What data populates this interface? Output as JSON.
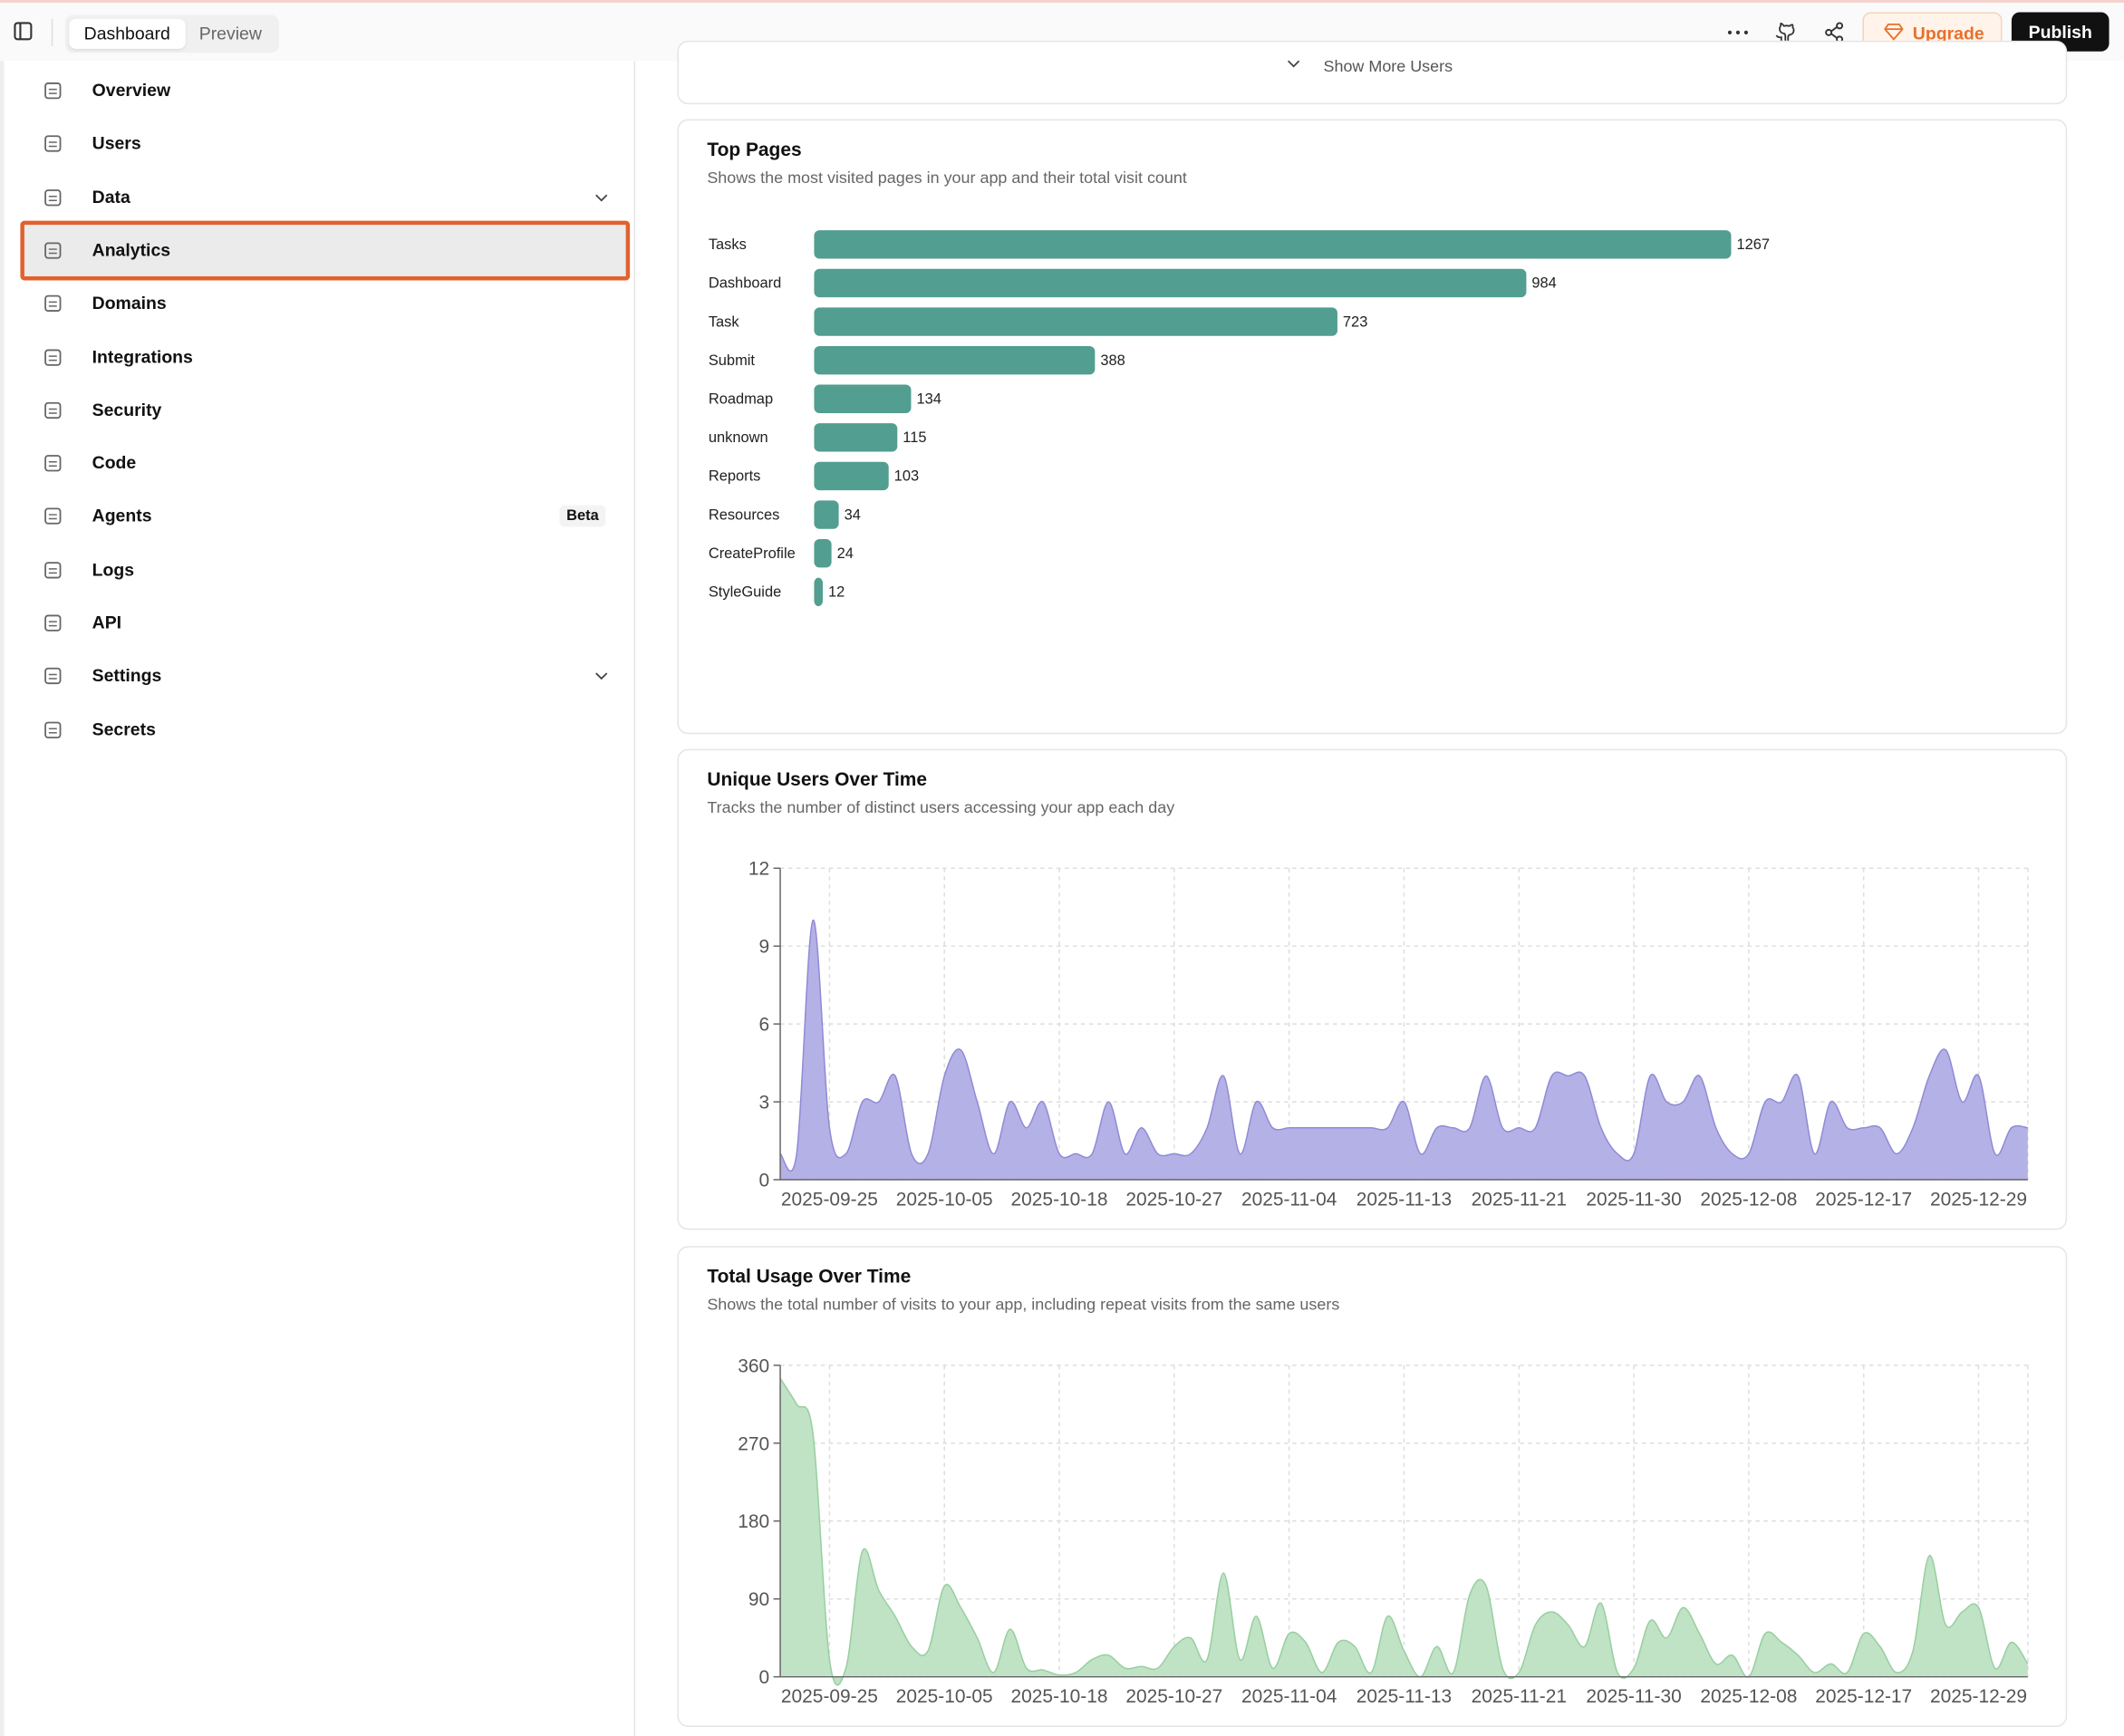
{
  "topbar": {
    "tabs": [
      "Dashboard",
      "Preview"
    ],
    "upgrade": "Upgrade",
    "publish": "Publish"
  },
  "sidebar": {
    "items": [
      {
        "label": "Overview"
      },
      {
        "label": "Users"
      },
      {
        "label": "Data",
        "expandable": true
      },
      {
        "label": "Analytics",
        "active": true
      },
      {
        "label": "Domains"
      },
      {
        "label": "Integrations"
      },
      {
        "label": "Security"
      },
      {
        "label": "Code"
      },
      {
        "label": "Agents",
        "badge": "Beta"
      },
      {
        "label": "Logs"
      },
      {
        "label": "API"
      },
      {
        "label": "Settings",
        "expandable": true
      },
      {
        "label": "Secrets"
      }
    ]
  },
  "show_more": "Show More Users",
  "charts": [
    {
      "type": "bar",
      "title": "Top Pages",
      "subtitle": "Shows the most visited pages in your app and their total visit count",
      "categories": [
        "Tasks",
        "Dashboard",
        "Task",
        "Submit",
        "Roadmap",
        "unknown",
        "Reports",
        "Resources",
        "CreateProfile",
        "StyleGuide"
      ],
      "values": [
        1267,
        984,
        723,
        388,
        134,
        115,
        103,
        34,
        24,
        12
      ],
      "color": "#529e90"
    },
    {
      "type": "area",
      "title": "Unique Users Over Time",
      "subtitle": "Tracks the number of distinct users accessing your app each day",
      "categories": [
        null,
        null,
        null,
        "2025-09-25",
        null,
        null,
        null,
        null,
        null,
        null,
        "2025-10-05",
        null,
        null,
        null,
        null,
        null,
        null,
        "2025-10-18",
        null,
        null,
        null,
        null,
        null,
        null,
        "2025-10-27",
        null,
        null,
        null,
        null,
        null,
        null,
        "2025-11-04",
        null,
        null,
        null,
        null,
        null,
        null,
        "2025-11-13",
        null,
        null,
        null,
        null,
        null,
        null,
        "2025-11-21",
        null,
        null,
        null,
        null,
        null,
        null,
        "2025-11-30",
        null,
        null,
        null,
        null,
        null,
        null,
        "2025-12-08",
        null,
        null,
        null,
        null,
        null,
        null,
        "2025-12-17",
        null,
        null,
        null,
        null,
        null,
        null,
        "2025-12-29",
        null,
        null,
        null
      ],
      "values": [
        1,
        1,
        10,
        2,
        1,
        3,
        3,
        4,
        1,
        1,
        4,
        5,
        3,
        1,
        3,
        2,
        3,
        1,
        1,
        1,
        3,
        1,
        2,
        1,
        1,
        1,
        2,
        4,
        1,
        3,
        2,
        2,
        2,
        2,
        2,
        2,
        2,
        2,
        3,
        1,
        2,
        2,
        2,
        4,
        2,
        2,
        2,
        4,
        4,
        4,
        2,
        1,
        1,
        4,
        3,
        3,
        4,
        2,
        1,
        1,
        3,
        3,
        4,
        1,
        3,
        2,
        2,
        2,
        1,
        2,
        4,
        5,
        3,
        4,
        1,
        2,
        2
      ],
      "color": "#8f8ad6",
      "fill": "#b4b1e6",
      "ylim": [
        0,
        12
      ],
      "yticks": [
        0,
        3,
        6,
        9,
        12
      ],
      "grid": true
    },
    {
      "type": "area",
      "title": "Total Usage Over Time",
      "subtitle": "Shows the total number of visits to your app, including repeat visits from the same users",
      "categories": [
        null,
        null,
        null,
        "2025-09-25",
        null,
        null,
        null,
        null,
        null,
        null,
        "2025-10-05",
        null,
        null,
        null,
        null,
        null,
        null,
        "2025-10-18",
        null,
        null,
        null,
        null,
        null,
        null,
        "2025-10-27",
        null,
        null,
        null,
        null,
        null,
        null,
        "2025-11-04",
        null,
        null,
        null,
        null,
        null,
        null,
        "2025-11-13",
        null,
        null,
        null,
        null,
        null,
        null,
        "2025-11-21",
        null,
        null,
        null,
        null,
        null,
        null,
        "2025-11-30",
        null,
        null,
        null,
        null,
        null,
        null,
        "2025-12-08",
        null,
        null,
        null,
        null,
        null,
        null,
        "2025-12-17",
        null,
        null,
        null,
        null,
        null,
        null,
        "2025-12-29",
        null,
        null,
        null
      ],
      "values": [
        345,
        315,
        280,
        20,
        10,
        145,
        100,
        70,
        35,
        30,
        105,
        80,
        45,
        5,
        55,
        10,
        8,
        2,
        5,
        20,
        25,
        10,
        12,
        10,
        35,
        45,
        20,
        120,
        20,
        70,
        10,
        50,
        40,
        5,
        40,
        35,
        5,
        70,
        30,
        0,
        35,
        5,
        95,
        105,
        10,
        5,
        60,
        75,
        60,
        35,
        85,
        5,
        10,
        65,
        45,
        80,
        50,
        15,
        25,
        0,
        50,
        40,
        25,
        5,
        15,
        5,
        50,
        35,
        5,
        30,
        140,
        60,
        75,
        80,
        10,
        40,
        15
      ],
      "color": "#97cf9f",
      "fill": "#c0e2c5",
      "ylim": [
        0,
        360
      ],
      "yticks": [
        0,
        90,
        180,
        270,
        360
      ],
      "grid": true
    }
  ]
}
